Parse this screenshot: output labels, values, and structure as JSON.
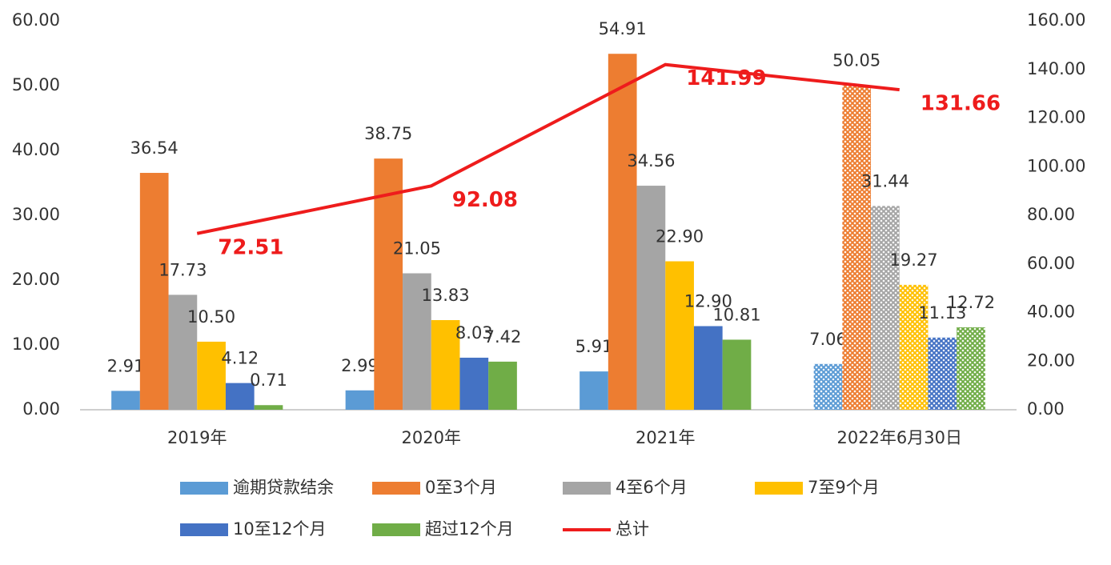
{
  "chart_data": {
    "type": "bar",
    "categories": [
      "2019年",
      "2020年",
      "2021年",
      "2022年6月30日"
    ],
    "series": [
      {
        "name": "逾期贷款结余",
        "color": "#5b9bd5",
        "values": [
          2.91,
          2.99,
          5.91,
          7.06
        ]
      },
      {
        "name": "0至3个月",
        "color": "#ed7d31",
        "values": [
          36.54,
          38.75,
          54.91,
          50.05
        ]
      },
      {
        "name": "4至6个月",
        "color": "#a5a5a5",
        "values": [
          17.73,
          21.05,
          34.56,
          31.44
        ]
      },
      {
        "name": "7至9个月",
        "color": "#ffc000",
        "values": [
          10.5,
          13.83,
          22.9,
          19.27
        ],
        "value_labels": [
          "10.50",
          "13.83",
          "22.90",
          "19.27"
        ]
      },
      {
        "name": "10至12个月",
        "color": "#4472c4",
        "values": [
          4.12,
          8.03,
          12.9,
          11.13
        ],
        "value_labels": [
          "4.12",
          "8.03",
          "12.90",
          "11.13"
        ]
      },
      {
        "name": "超过12个月",
        "color": "#70ad47",
        "values": [
          0.71,
          7.42,
          10.81,
          12.72
        ]
      },
      {
        "name": "总计",
        "color": "#ee1c1c",
        "type": "line",
        "axis": "y2",
        "values": [
          72.51,
          92.08,
          141.99,
          131.66
        ]
      }
    ],
    "ylim": [
      0,
      60
    ],
    "yticks": [
      {
        "value": 0,
        "label": "0.00"
      },
      {
        "value": 10,
        "label": "10.00"
      },
      {
        "value": 20,
        "label": "20.00"
      },
      {
        "value": 30,
        "label": "30.00"
      },
      {
        "value": 40,
        "label": "40.00"
      },
      {
        "value": 50,
        "label": "50.00"
      },
      {
        "value": 60,
        "label": "60.00"
      }
    ],
    "y2lim": [
      0,
      160
    ],
    "y2ticks": [
      {
        "value": 0,
        "label": "0.00"
      },
      {
        "value": 20,
        "label": "20.00"
      },
      {
        "value": 40,
        "label": "40.00"
      },
      {
        "value": 60,
        "label": "60.00"
      },
      {
        "value": 80,
        "label": "80.00"
      },
      {
        "value": 100,
        "label": "100.00"
      },
      {
        "value": 120,
        "label": "120.00"
      },
      {
        "value": 140,
        "label": "140.00"
      },
      {
        "value": 160,
        "label": "160.00"
      }
    ],
    "grid": false,
    "legend": "bottom"
  }
}
